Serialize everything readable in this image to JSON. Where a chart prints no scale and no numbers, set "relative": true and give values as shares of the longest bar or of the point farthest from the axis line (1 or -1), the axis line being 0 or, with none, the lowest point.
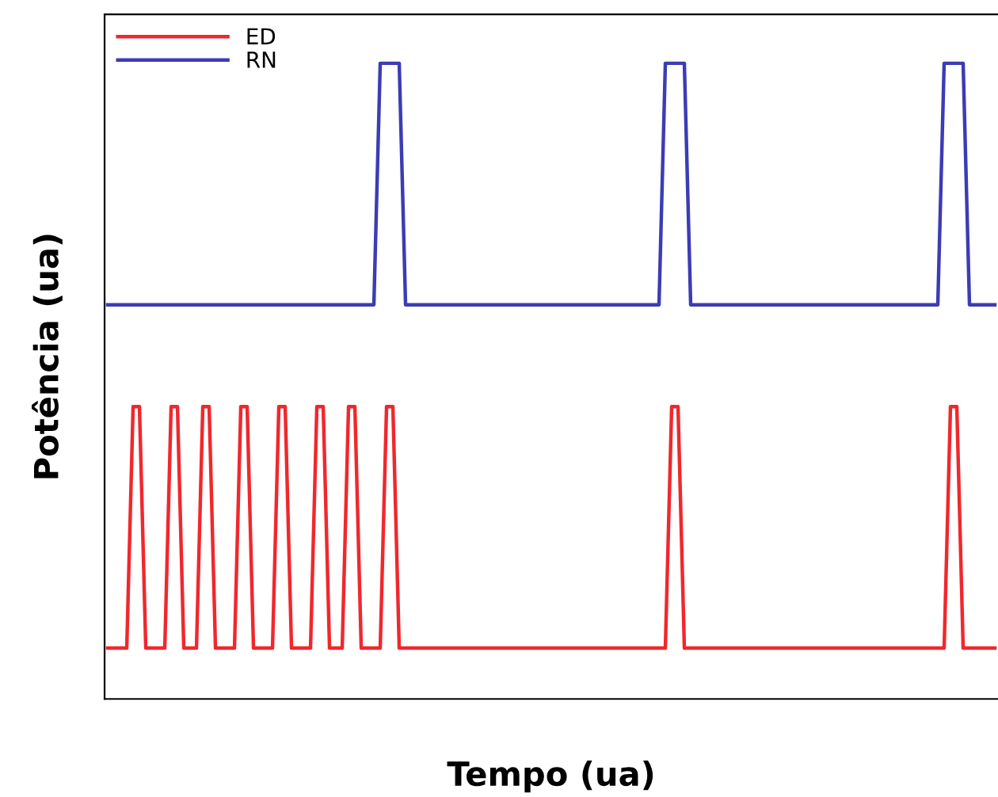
{
  "chart_data": {
    "type": "line",
    "xlabel": "Tempo (ua)",
    "ylabel": "Potência (ua)",
    "relative": true,
    "tick_labels": false,
    "legend": "top left",
    "marker": "none",
    "line_style": "solid",
    "categories": [
      null,
      null,
      null,
      null,
      null,
      null,
      null,
      null,
      null,
      null,
      null,
      null,
      null,
      null,
      null,
      null,
      null,
      null,
      null,
      null,
      null,
      null,
      null,
      null,
      null,
      null,
      null,
      null,
      null,
      null,
      null,
      null,
      null,
      null,
      null,
      null,
      null,
      null,
      null,
      null,
      null,
      null,
      null,
      null,
      null,
      null,
      null,
      null,
      null,
      null,
      null,
      null,
      null,
      null,
      null,
      null,
      null,
      null,
      null,
      null,
      null,
      null,
      null,
      null,
      null,
      null,
      null,
      null,
      null,
      null,
      null,
      null,
      null,
      null,
      null,
      null,
      null,
      null,
      null,
      null,
      null,
      null,
      null,
      null,
      null,
      null,
      null,
      null,
      null,
      null,
      null,
      null,
      null,
      null,
      null,
      null,
      null,
      null,
      null,
      null,
      null,
      null,
      null,
      null,
      null,
      null,
      null,
      null,
      null,
      null,
      null,
      null,
      null,
      null,
      null,
      null,
      null,
      null,
      null,
      null,
      null,
      null,
      null,
      null,
      null,
      null,
      null,
      null,
      null,
      null,
      null,
      null,
      null,
      null,
      null,
      null,
      null,
      null,
      null,
      null,
      null
    ],
    "series": [
      {
        "name": "ED",
        "color": "#f0282d",
        "values": [
          0.08,
          0.08,
          0.08,
          0.08,
          0.46,
          0.46,
          0.08,
          0.08,
          0.08,
          0.08,
          0.46,
          0.46,
          0.08,
          0.08,
          0.08,
          0.46,
          0.46,
          0.08,
          0.08,
          0.08,
          0.08,
          0.46,
          0.46,
          0.08,
          0.08,
          0.08,
          0.08,
          0.46,
          0.46,
          0.08,
          0.08,
          0.08,
          0.08,
          0.46,
          0.46,
          0.08,
          0.08,
          0.08,
          0.46,
          0.46,
          0.08,
          0.08,
          0.08,
          0.08,
          0.46,
          0.46,
          0.08,
          0.08,
          0.08,
          0.08,
          0.08,
          0.08,
          0.08,
          0.08,
          0.08,
          0.08,
          0.08,
          0.08,
          0.08,
          0.08,
          0.08,
          0.08,
          0.08,
          0.08,
          0.08,
          0.08,
          0.08,
          0.08,
          0.08,
          0.08,
          0.08,
          0.08,
          0.08,
          0.08,
          0.08,
          0.08,
          0.08,
          0.08,
          0.08,
          0.08,
          0.08,
          0.08,
          0.08,
          0.08,
          0.08,
          0.08,
          0.08,
          0.08,
          0.08,
          0.46,
          0.46,
          0.08,
          0.08,
          0.08,
          0.08,
          0.08,
          0.08,
          0.08,
          0.08,
          0.08,
          0.08,
          0.08,
          0.08,
          0.08,
          0.08,
          0.08,
          0.08,
          0.08,
          0.08,
          0.08,
          0.08,
          0.08,
          0.08,
          0.08,
          0.08,
          0.08,
          0.08,
          0.08,
          0.08,
          0.08,
          0.08,
          0.08,
          0.08,
          0.08,
          0.08,
          0.08,
          0.08,
          0.08,
          0.08,
          0.08,
          0.08,
          0.08,
          0.08,
          0.46,
          0.46,
          0.08,
          0.08,
          0.08,
          0.08,
          0.08,
          0.08
        ]
      },
      {
        "name": "RN",
        "color": "#3c3cb4",
        "values": [
          0.62,
          0.62,
          0.62,
          0.62,
          0.62,
          0.62,
          0.62,
          0.62,
          0.62,
          0.62,
          0.62,
          0.62,
          0.62,
          0.62,
          0.62,
          0.62,
          0.62,
          0.62,
          0.62,
          0.62,
          0.62,
          0.62,
          0.62,
          0.62,
          0.62,
          0.62,
          0.62,
          0.62,
          0.62,
          0.62,
          0.62,
          0.62,
          0.62,
          0.62,
          0.62,
          0.62,
          0.62,
          0.62,
          0.62,
          0.62,
          0.62,
          0.62,
          0.62,
          1,
          1,
          1,
          1,
          0.62,
          0.62,
          0.62,
          0.62,
          0.62,
          0.62,
          0.62,
          0.62,
          0.62,
          0.62,
          0.62,
          0.62,
          0.62,
          0.62,
          0.62,
          0.62,
          0.62,
          0.62,
          0.62,
          0.62,
          0.62,
          0.62,
          0.62,
          0.62,
          0.62,
          0.62,
          0.62,
          0.62,
          0.62,
          0.62,
          0.62,
          0.62,
          0.62,
          0.62,
          0.62,
          0.62,
          0.62,
          0.62,
          0.62,
          0.62,
          0.62,
          1,
          1,
          1,
          1,
          0.62,
          0.62,
          0.62,
          0.62,
          0.62,
          0.62,
          0.62,
          0.62,
          0.62,
          0.62,
          0.62,
          0.62,
          0.62,
          0.62,
          0.62,
          0.62,
          0.62,
          0.62,
          0.62,
          0.62,
          0.62,
          0.62,
          0.62,
          0.62,
          0.62,
          0.62,
          0.62,
          0.62,
          0.62,
          0.62,
          0.62,
          0.62,
          0.62,
          0.62,
          0.62,
          0.62,
          0.62,
          0.62,
          0.62,
          0.62,
          1,
          1,
          1,
          1,
          0.62,
          0.62,
          0.62,
          0.62,
          0.62
        ]
      }
    ]
  }
}
